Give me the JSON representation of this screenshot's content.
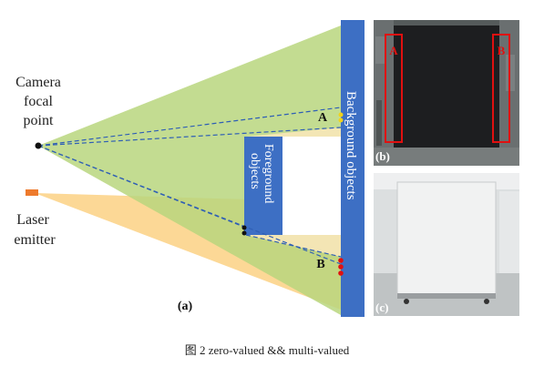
{
  "labels": {
    "camera": [
      "Camera",
      "focal",
      "point"
    ],
    "laser": [
      "Laser",
      "emitter"
    ],
    "background": "Background objects",
    "foreground": [
      "Foreground",
      "objects"
    ],
    "point_a": "A",
    "point_b": "B",
    "panel_a": "(a)",
    "panel_b": "(b)",
    "panel_c": "(c)",
    "marker_a": "A",
    "marker_b": "B"
  },
  "caption": "图 2 zero-valued && multi-valued",
  "colors": {
    "green_fan": "#b5d37a",
    "orange_fan": "#fbd38c",
    "background_block": "#3d6fc4",
    "foreground_block": "#3d6fc4",
    "dashed": "#2f5fb5",
    "laser": "#ee7a2c",
    "marker_red": "#e01010",
    "marker_yellow": "#f2d21b"
  }
}
